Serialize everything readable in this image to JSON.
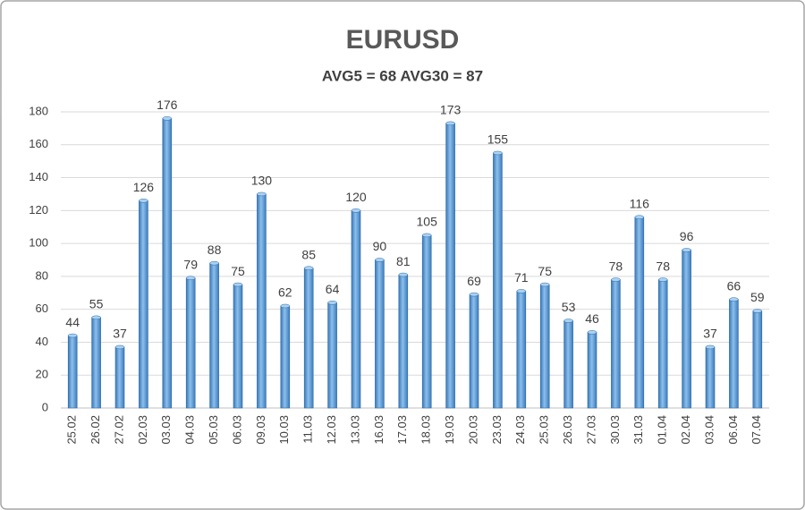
{
  "chart_data": {
    "type": "bar",
    "title": "EURUSD",
    "subtitle": "AVG5 = 68 AVG30 = 87",
    "categories": [
      "25.02",
      "26.02",
      "27.02",
      "02.03",
      "03.03",
      "04.03",
      "05.03",
      "06.03",
      "09.03",
      "10.03",
      "11.03",
      "12.03",
      "13.03",
      "16.03",
      "17.03",
      "18.03",
      "19.03",
      "20.03",
      "23.03",
      "24.03",
      "25.03",
      "26.03",
      "27.03",
      "30.03",
      "31.03",
      "01.04",
      "02.04",
      "03.04",
      "06.04",
      "07.04"
    ],
    "values": [
      44,
      55,
      37,
      126,
      176,
      79,
      88,
      75,
      130,
      62,
      85,
      64,
      120,
      90,
      81,
      105,
      173,
      69,
      155,
      71,
      75,
      53,
      46,
      78,
      116,
      78,
      96,
      37,
      66,
      59
    ],
    "color": "#5b9bd5",
    "ylim": [
      0,
      180
    ],
    "yticks": [
      0,
      20,
      40,
      60,
      80,
      100,
      120,
      140,
      160,
      180
    ],
    "grid": true
  }
}
